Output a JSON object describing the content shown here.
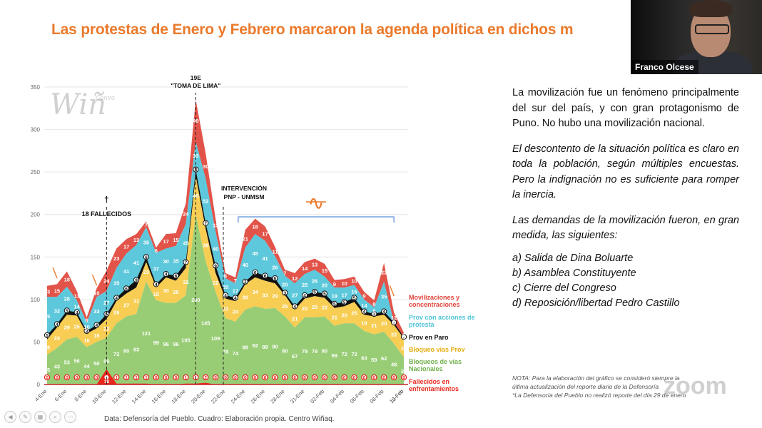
{
  "slide": {
    "title": "Las protestas de Enero y Febrero marcaron la agenda política en dichos m",
    "source": "Data: Defensoría del Pueblo. Cuadro: Elaboración propia. Centro Wiñaq.",
    "logo_big": "Wiñ",
    "logo_small": "Centro"
  },
  "webcam": {
    "name": "Franco Olcese"
  },
  "side": {
    "p1": "La movilización fue un fenómeno principalmente del sur del país, y con gran protagonismo de Puno.  No hubo una movilización nacional.",
    "p2": "El descontento de la situación política es claro en toda la población, según múltiples encuestas.  Pero la indignación no es suficiente para romper la inercia.",
    "p3": "Las demandas de la movilización fueron, en gran medida, las siguientes:",
    "demands": [
      "a) Salida de Dina Boluarte",
      "b) Asamblea Constituyente",
      "c) Cierre del Congreso",
      "d) Reposición/libertad Pedro Castillo"
    ],
    "note_line1": "NOTA: Para la elaboración del gráfico se consideró siempre la",
    "note_line2": "última actualización del reporte diario de la Defensoría",
    "note_line3": "*La Defensoría del Pueblo no realizó reporte del día 29 de enero",
    "watermark": "zoom"
  },
  "chart_data": {
    "type": "area",
    "ylim": [
      0,
      350
    ],
    "yticks": [
      0,
      50,
      100,
      150,
      200,
      250,
      300,
      350
    ],
    "x_tick_labels": [
      "4-Ene",
      "6-Ene",
      "8-Ene",
      "10-Ene",
      "12-Ene",
      "14-Ene",
      "16-Ene",
      "18-Ene",
      "20-Ene",
      "22-Ene",
      "24-Ene",
      "26-Ene",
      "28-Ene",
      "31-Ene",
      "02-Feb",
      "04-Feb",
      "06-Feb",
      "08-Feb",
      "10-Feb",
      "12-Feb"
    ],
    "colors": {
      "movilizaciones": "#e0443a",
      "prov_acciones": "#4fc3d8",
      "prov_paro": "#111111",
      "bloqueo_prov": "#f6c944",
      "bloqueos_nac": "#8fc96a",
      "fallecidos": "#e8261c"
    },
    "series": [
      {
        "name": "Bloqueos de vías Nacionales",
        "key": "bloqueos_nac",
        "values": [
          35,
          43,
          53,
          56,
          44,
          50,
          55,
          72,
          80,
          83,
          121,
          99,
          96,
          96,
          105,
          200,
          145,
          109,
          78,
          74,
          88,
          92,
          89,
          90,
          80,
          67,
          79,
          79,
          80,
          69,
          72,
          72,
          63,
          59,
          62,
          48,
          32
        ]
      },
      {
        "name": "Bloqueo vías Prov",
        "key": "bloqueo_prov",
        "values": [
          18,
          24,
          29,
          25,
          16,
          16,
          22,
          26,
          27,
          31,
          23,
          15,
          30,
          26,
          32,
          45,
          38,
          22,
          23,
          24,
          30,
          34,
          33,
          29,
          25,
          21,
          22,
          25,
          22,
          21,
          20,
          25,
          19,
          21,
          20,
          22,
          22
        ]
      },
      {
        "name": "Prov en Paro",
        "key": "prov_paro",
        "values": [
          5,
          4,
          5,
          4,
          3,
          4,
          6,
          4,
          6,
          9,
          6,
          4,
          4,
          6,
          7,
          8,
          7,
          9,
          4,
          4,
          3,
          6,
          6,
          6,
          3,
          4,
          4,
          5,
          5,
          5,
          5,
          5,
          4,
          3,
          4,
          3,
          2
        ]
      },
      {
        "name": "Prov con acciones de protesta",
        "key": "prov_acciones",
        "values": [
          45,
          32,
          28,
          14,
          10,
          33,
          27,
          35,
          41,
          41,
          35,
          37,
          30,
          35,
          45,
          33,
          52,
          40,
          20,
          17,
          40,
          45,
          41,
          26,
          20,
          27,
          25,
          26,
          20,
          19,
          17,
          15,
          14,
          8,
          35,
          0,
          0
        ]
      },
      {
        "name": "Movilizaciones y concentraciones",
        "key": "movilizaciones",
        "values": [
          13,
          15,
          18,
          11,
          6,
          10,
          24,
          23,
          17,
          13,
          7,
          6,
          17,
          15,
          24,
          49,
          30,
          15,
          6,
          7,
          21,
          18,
          17,
          11,
          7,
          12,
          14,
          13,
          15,
          9,
          10,
          10,
          9,
          8,
          22,
          12,
          5
        ]
      },
      {
        "name": "Fallecidos en enfrentamientos",
        "key": "fallecidos",
        "values": [
          0,
          0,
          0,
          0,
          0,
          0,
          18,
          1,
          1,
          1,
          1,
          0,
          0,
          0,
          1,
          1,
          2,
          0,
          0,
          0,
          0,
          0,
          0,
          0,
          0,
          0,
          0,
          0,
          0,
          0,
          0,
          0,
          0,
          0,
          0,
          0,
          0
        ]
      }
    ],
    "annotations": {
      "fallecidos": "18 FALLECIDOS",
      "cross": "†",
      "toma_1": "19E",
      "toma_2": "\"TOMA DE LIMA\"",
      "interv_1": "INTERVENCIÓN",
      "interv_2": "PNP - UNMSM",
      "wave": "∿"
    },
    "legend": [
      {
        "label1": "Movilizaciones y",
        "label2": "concentraciones",
        "key": "movilizaciones"
      },
      {
        "label1": "Prov con acciones de",
        "label2": "protesta",
        "key": "prov_acciones"
      },
      {
        "label1": "Prov en Paro",
        "label2": "",
        "key": "prov_paro"
      },
      {
        "label1": "Bloqueo vías Prov",
        "label2": "",
        "key": "bloqueo_prov"
      },
      {
        "label1": "Bloqueos de vías",
        "label2": "Nacionales",
        "key": "bloqueos_nac"
      },
      {
        "label1": "Fallecidos en",
        "label2": "enfrentamientos",
        "key": "fallecidos"
      }
    ]
  }
}
